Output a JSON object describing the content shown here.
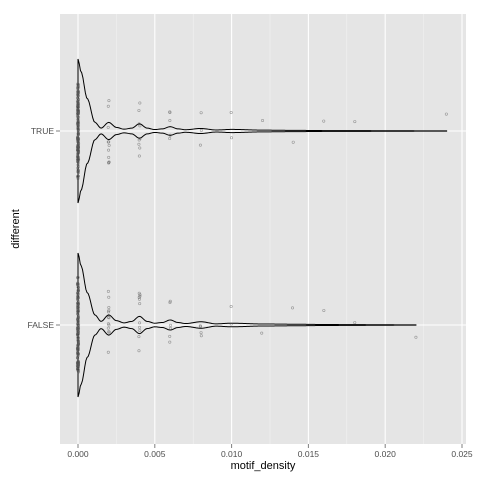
{
  "chart_data": {
    "type": "violin",
    "title": "",
    "xlabel": "motif_density",
    "ylabel": "different",
    "orientation": "horizontal",
    "xlim": [
      -0.001,
      0.0255
    ],
    "x_ticks": [
      0,
      0.005,
      0.01,
      0.015,
      0.02,
      0.025
    ],
    "x_tick_labels": [
      "0.000",
      "0.005",
      "0.010",
      "0.015",
      "0.020",
      "0.025"
    ],
    "categories": [
      "TRUE",
      "FALSE"
    ],
    "grid": true,
    "legend": "none",
    "colors": {
      "panel": "#e5e5e5",
      "grid_major": "#ffffff",
      "grid_minor": "#f2f2f2",
      "outline": "#000000",
      "points": "#555555"
    },
    "series": [
      {
        "category": "TRUE",
        "max": 0.024,
        "point_levels": [
          0,
          0.002,
          0.004,
          0.006,
          0.008,
          0.01,
          0.012,
          0.014,
          0.016,
          0.018,
          0.024
        ],
        "density_profile": [
          [
            0,
            1.0
          ],
          [
            0.0002,
            0.82
          ],
          [
            0.0006,
            0.45
          ],
          [
            0.0011,
            0.12
          ],
          [
            0.0015,
            0.04
          ],
          [
            0.002,
            0.12
          ],
          [
            0.0025,
            0.05
          ],
          [
            0.003,
            0.025
          ],
          [
            0.0035,
            0.04
          ],
          [
            0.004,
            0.1
          ],
          [
            0.0045,
            0.04
          ],
          [
            0.005,
            0.02
          ],
          [
            0.0055,
            0.03
          ],
          [
            0.006,
            0.06
          ],
          [
            0.0065,
            0.03
          ],
          [
            0.007,
            0.018
          ],
          [
            0.008,
            0.035
          ],
          [
            0.009,
            0.014
          ],
          [
            0.01,
            0.022
          ],
          [
            0.012,
            0.012
          ],
          [
            0.014,
            0.009
          ],
          [
            0.016,
            0.006
          ],
          [
            0.018,
            0.005
          ],
          [
            0.021,
            0.003
          ],
          [
            0.024,
            0.001
          ]
        ]
      },
      {
        "category": "FALSE",
        "max": 0.022,
        "point_levels": [
          0,
          0.002,
          0.004,
          0.006,
          0.008,
          0.01,
          0.012,
          0.014,
          0.016,
          0.018,
          0.022
        ],
        "density_profile": [
          [
            0,
            1.0
          ],
          [
            0.0002,
            0.82
          ],
          [
            0.0006,
            0.45
          ],
          [
            0.0011,
            0.14
          ],
          [
            0.0015,
            0.05
          ],
          [
            0.002,
            0.14
          ],
          [
            0.0025,
            0.06
          ],
          [
            0.003,
            0.03
          ],
          [
            0.0035,
            0.05
          ],
          [
            0.004,
            0.12
          ],
          [
            0.0045,
            0.05
          ],
          [
            0.005,
            0.025
          ],
          [
            0.0055,
            0.035
          ],
          [
            0.006,
            0.07
          ],
          [
            0.0065,
            0.035
          ],
          [
            0.007,
            0.02
          ],
          [
            0.008,
            0.045
          ],
          [
            0.009,
            0.016
          ],
          [
            0.01,
            0.025
          ],
          [
            0.012,
            0.014
          ],
          [
            0.014,
            0.011
          ],
          [
            0.016,
            0.007
          ],
          [
            0.018,
            0.005
          ],
          [
            0.02,
            0.003
          ],
          [
            0.022,
            0.001
          ]
        ]
      }
    ]
  }
}
